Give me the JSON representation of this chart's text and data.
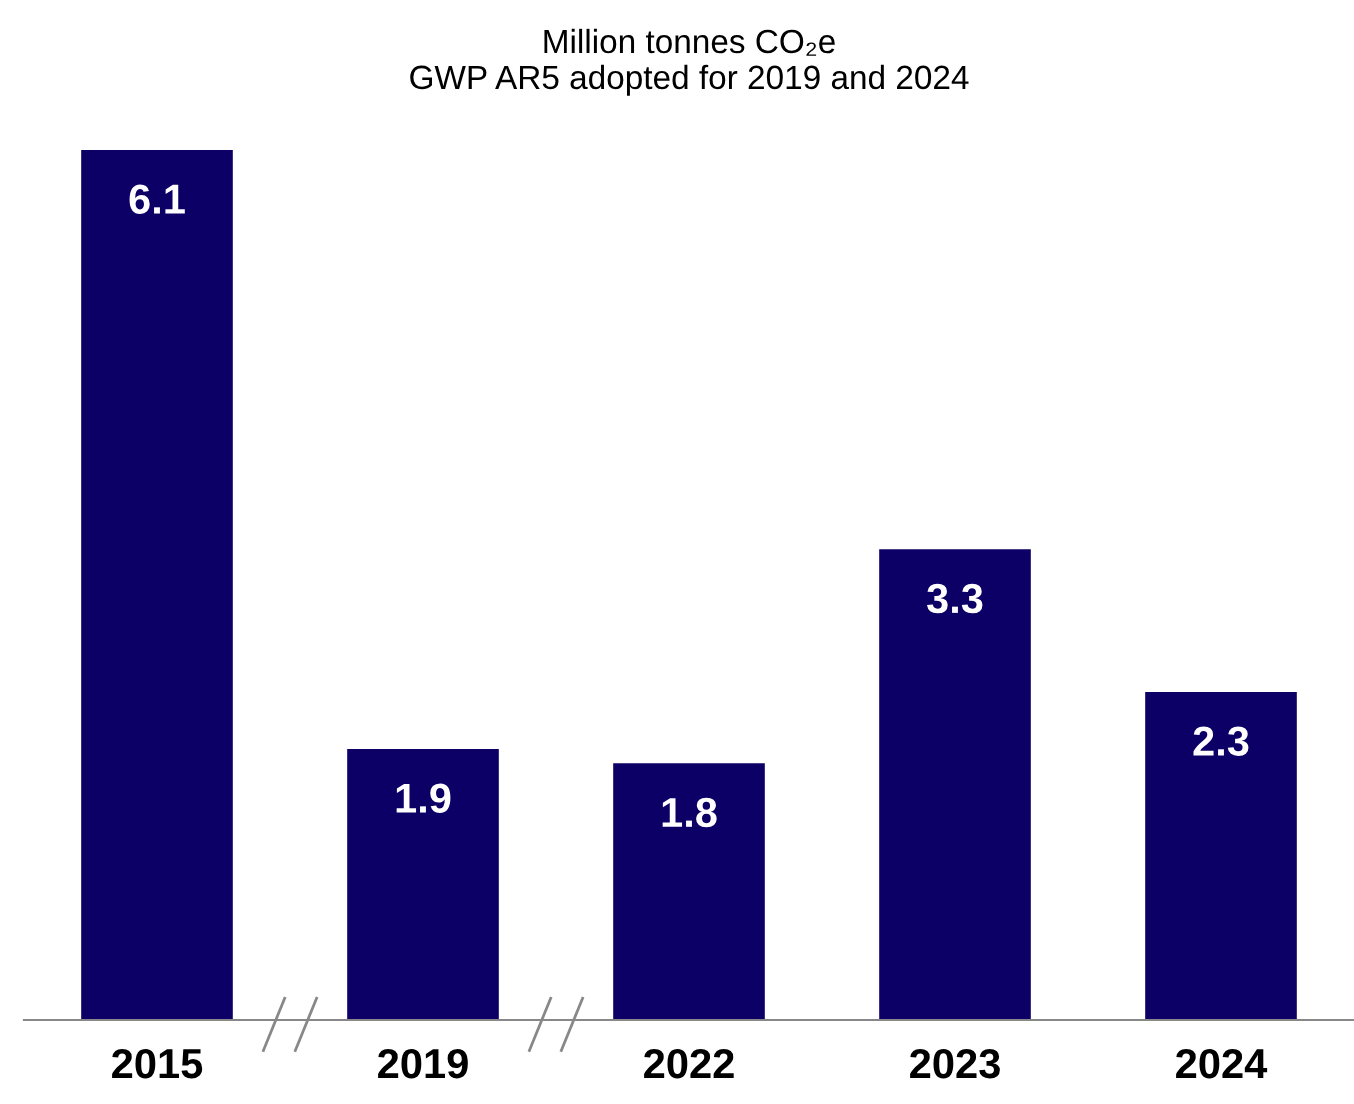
{
  "chart_data": {
    "type": "bar",
    "title": "Million tonnes CO₂e\nGWP AR5 adopted for 2019 and 2024",
    "categories": [
      "2015",
      "2019",
      "2022",
      "2023",
      "2024"
    ],
    "values": [
      6.1,
      1.9,
      1.8,
      3.3,
      2.3
    ],
    "color": "#0c0066",
    "data_labels": true,
    "grid": false,
    "legend": false,
    "tick_labels": "x"
  }
}
